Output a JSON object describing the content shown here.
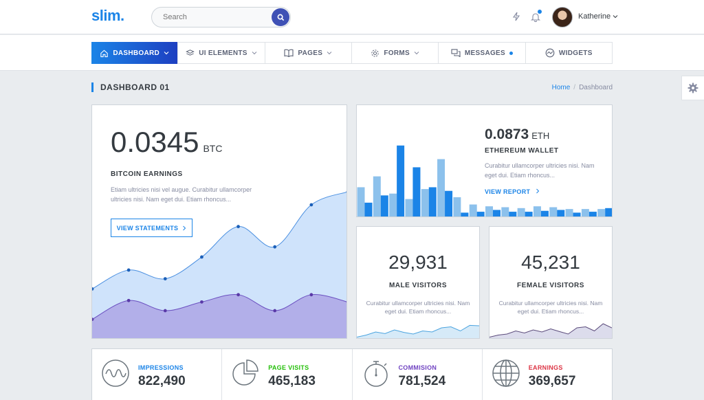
{
  "header": {
    "logo": "slim.",
    "search_placeholder": "Search",
    "user_name": "Katherine"
  },
  "nav": [
    {
      "label": "DASHBOARD",
      "icon": "home-icon",
      "active": true
    },
    {
      "label": "UI ELEMENTS",
      "icon": "layers-icon"
    },
    {
      "label": "PAGES",
      "icon": "book-icon"
    },
    {
      "label": "FORMS",
      "icon": "gear-icon"
    },
    {
      "label": "MESSAGES",
      "icon": "chat-icon"
    },
    {
      "label": "WIDGETS",
      "icon": "pulse-icon"
    }
  ],
  "page": {
    "title": "DASHBOARD 01",
    "breadcrumb": [
      "Home",
      "Dashboard"
    ]
  },
  "bitcoin": {
    "value": "0.0345",
    "unit": "BTC",
    "label": "BITCOIN EARNINGS",
    "desc_line1": "Etiam ultricies nisi vel augue. Curabitur ullamcorper",
    "desc_line2": "ultricies nisi. Nam eget dui. Etiam rhoncus...",
    "button": "VIEW STATEMENTS"
  },
  "ethereum": {
    "value": "0.0873",
    "unit": "ETH",
    "label": "ETHEREUM WALLET",
    "desc_line1": "Curabitur ullamcorper ultricies nisi. Nam",
    "desc_line2": "eget dui. Etiam rhoncus...",
    "link": "VIEW REPORT"
  },
  "male": {
    "value": "29,931",
    "label": "MALE VISITORS",
    "desc_line1": "Curabitur ullamcorper ultricies nisi. Nam",
    "desc_line2": "eget dui. Etiam rhoncus..."
  },
  "female": {
    "value": "45,231",
    "label": "FEMALE VISITORS",
    "desc_line1": "Curabitur ullamcorper ultricies nisi. Nam",
    "desc_line2": "eget dui. Etiam rhoncus..."
  },
  "stats": [
    {
      "label": "IMPRESSIONS",
      "value": "822,490",
      "color": "#1b84e7",
      "icon": "wave-icon"
    },
    {
      "label": "PAGE VISITS",
      "value": "465,183",
      "color": "#23bf08",
      "icon": "pie-chart-icon"
    },
    {
      "label": "COMMISION",
      "value": "781,524",
      "color": "#6f42c1",
      "icon": "stopwatch-icon"
    },
    {
      "label": "EARNINGS",
      "value": "369,657",
      "color": "#dc3545",
      "icon": "globe-icon"
    }
  ],
  "colors": {
    "accent": "#1b84e7",
    "accent_dark": "#1d3fc1",
    "area_blue": "#cfe3fb",
    "area_purple": "#b0ace8"
  },
  "chart_data": [
    {
      "type": "area",
      "series": [
        {
          "values": [
            0.33,
            0.46,
            0.4,
            0.55,
            0.76,
            0.62,
            0.91,
            1.0
          ]
        },
        {
          "values": [
            0.12,
            0.25,
            0.18,
            0.24,
            0.29,
            0.18,
            0.29,
            0.24
          ]
        }
      ]
    },
    {
      "type": "bar",
      "series": [
        {
          "values": [
            0.33,
            0.45,
            0.26,
            0.2,
            0.31,
            0.64,
            0.22,
            0.14,
            0.12,
            0.11,
            0.1,
            0.12,
            0.11,
            0.09,
            0.09,
            0.09
          ]
        },
        {
          "values": [
            0.16,
            0.24,
            0.79,
            0.55,
            0.33,
            0.29,
            0.05,
            0.06,
            0.08,
            0.06,
            0.06,
            0.07,
            0.08,
            0.05,
            0.06,
            0.1
          ]
        }
      ]
    },
    {
      "type": "area",
      "series": [
        {
          "values": [
            0.05,
            0.15,
            0.3,
            0.22,
            0.4,
            0.28,
            0.2,
            0.35,
            0.3,
            0.5,
            0.55,
            0.35,
            0.62,
            0.6
          ]
        }
      ]
    },
    {
      "type": "area",
      "series": [
        {
          "values": [
            0.05,
            0.15,
            0.2,
            0.35,
            0.25,
            0.4,
            0.3,
            0.45,
            0.32,
            0.2,
            0.5,
            0.55,
            0.35,
            0.7,
            0.5
          ]
        }
      ]
    }
  ]
}
